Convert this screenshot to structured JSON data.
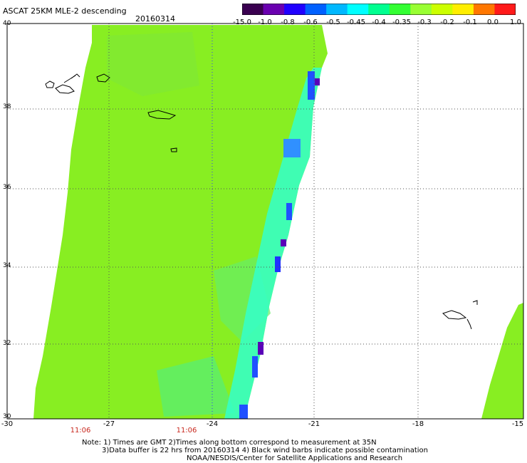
{
  "header": {
    "title": "ASCAT 25KM MLE-2 descending",
    "date": "20160314"
  },
  "colorbar": {
    "labels": [
      "-15.0",
      "-1.0",
      "-0.8",
      "-0.6",
      "-0.5",
      "-0.45",
      "-0.4",
      "-0.35",
      "-0.3",
      "-0.2",
      "-0.1",
      "0.0",
      "1.0"
    ],
    "colors": [
      "#3a0050",
      "#6a00b0",
      "#2000ff",
      "#0060ff",
      "#00b8ff",
      "#00ffff",
      "#00ff90",
      "#33ff33",
      "#99ff33",
      "#ccff00",
      "#ffee00",
      "#ff7700",
      "#ff1a1a"
    ]
  },
  "map": {
    "lon_labels": [
      "-30",
      "-27",
      "-24",
      "-21",
      "-18",
      "-15"
    ],
    "lat_labels": [
      "40",
      "38",
      "36",
      "34",
      "32",
      "30"
    ],
    "time_labels": [
      "11:06",
      "11:06"
    ],
    "swath_color": "#88ee22",
    "grid_color": "#555555",
    "time_line_color": "#3333ff"
  },
  "notes": {
    "line1": "Note: 1) Times are GMT 2)Times along bottom correspond to measurement at 35N",
    "line2": "3)Data buffer is 22 hrs from 20160314 4) Black wind barbs indicate possible contamination",
    "line3": "NOAA/NESDIS/Center for Satellite Applications and Research"
  }
}
